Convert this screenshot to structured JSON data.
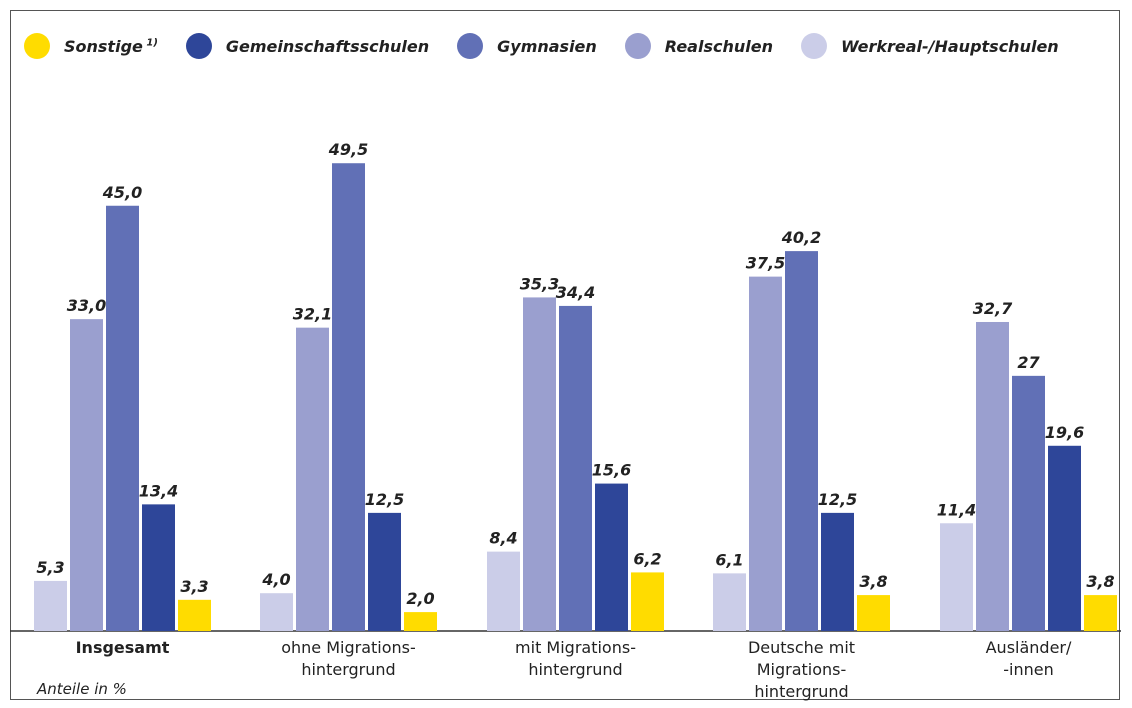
{
  "chart_data": {
    "type": "bar",
    "legend": [
      {
        "name": "Sonstige",
        "suffix": "1)",
        "color": "#FFDC00"
      },
      {
        "name": "Gemeinschaftsschulen",
        "suffix": "",
        "color": "#2E4699"
      },
      {
        "name": "Gymnasien",
        "suffix": "",
        "color": "#6170B6"
      },
      {
        "name": "Realschulen",
        "suffix": "",
        "color": "#9A9FCF"
      },
      {
        "name": "Werkreal-/Hauptschulen",
        "suffix": "",
        "color": "#CBCDE8"
      }
    ],
    "categories": [
      {
        "lines": [
          "Insgesamt"
        ],
        "bold": true
      },
      {
        "lines": [
          "ohne Migrations-",
          "hintergrund"
        ],
        "bold": false
      },
      {
        "lines": [
          "mit Migrations-",
          "hintergrund"
        ],
        "bold": false
      },
      {
        "lines": [
          "Deutsche mit",
          "Migrations-",
          "hintergrund"
        ],
        "bold": false
      },
      {
        "lines": [
          "Ausländer/",
          "-innen"
        ],
        "bold": false
      }
    ],
    "series": [
      {
        "name": "Werkreal-/Hauptschulen",
        "color": "#CBCDE8",
        "values": [
          5.3,
          4.0,
          8.4,
          6.1,
          11.4
        ],
        "labels": [
          "5,3",
          "4,0",
          "8,4",
          "6,1",
          "11,4"
        ]
      },
      {
        "name": "Realschulen",
        "color": "#9A9FCF",
        "values": [
          33.0,
          32.1,
          35.3,
          37.5,
          32.7
        ],
        "labels": [
          "33,0",
          "32,1",
          "35,3",
          "37,5",
          "32,7"
        ]
      },
      {
        "name": "Gymnasien",
        "color": "#6170B6",
        "values": [
          45.0,
          49.5,
          34.4,
          40.2,
          27
        ],
        "labels": [
          "45,0",
          "49,5",
          "34,4",
          "40,2",
          "27"
        ]
      },
      {
        "name": "Gemeinschaftsschulen",
        "color": "#2E4699",
        "values": [
          13.4,
          12.5,
          15.6,
          12.5,
          19.6
        ],
        "labels": [
          "13,4",
          "12,5",
          "15,6",
          "12,5",
          "19,6"
        ]
      },
      {
        "name": "Sonstige",
        "color": "#FFDC00",
        "values": [
          3.3,
          2.0,
          6.2,
          3.8,
          3.8
        ],
        "labels": [
          "3,3",
          "2,0",
          "6,2",
          "3,8",
          "3,8"
        ]
      }
    ],
    "note": "Anteile in %",
    "ylim": [
      0,
      50
    ],
    "grid": false,
    "legend_position": "top-left"
  }
}
